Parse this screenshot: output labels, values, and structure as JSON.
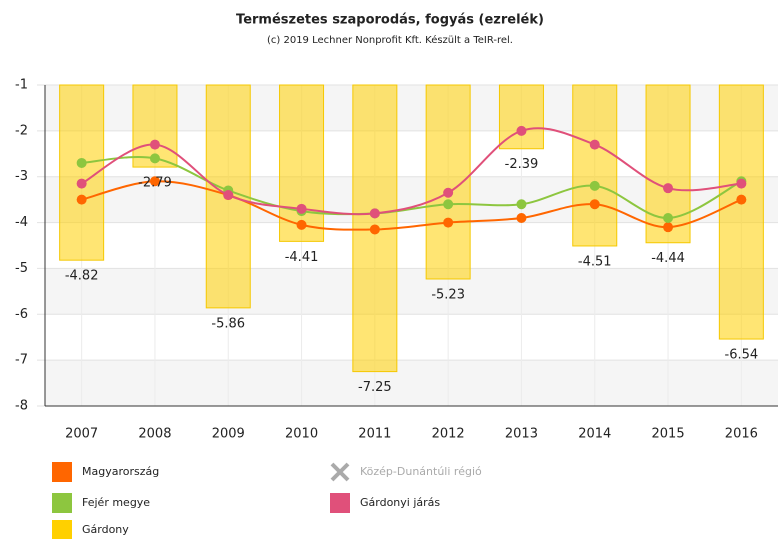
{
  "chart_data": {
    "type": "bar-line",
    "title": "Természetes szaporodás, fogyás (ezrelék)",
    "subtitle": "(c) 2019 Lechner Nonprofit Kft. Készült a TeIR-rel.",
    "categories": [
      "2007",
      "2008",
      "2009",
      "2010",
      "2011",
      "2012",
      "2013",
      "2014",
      "2015",
      "2016"
    ],
    "ylim": [
      -8,
      -1
    ],
    "yticks": [
      -8,
      -7,
      -6,
      -5,
      -4,
      -3,
      -2,
      -1
    ],
    "grid": true,
    "bars": {
      "name": "Gárdony",
      "color": "#ffd000",
      "values": [
        -4.82,
        -2.79,
        -5.86,
        -4.41,
        -7.25,
        -5.23,
        -2.39,
        -4.51,
        -4.44,
        -6.54
      ]
    },
    "series": [
      {
        "name": "Magyarország",
        "color": "#ff6600",
        "values": [
          -3.5,
          -3.1,
          -3.4,
          -4.05,
          -4.15,
          -4.0,
          -3.9,
          -3.6,
          -4.1,
          -3.5
        ]
      },
      {
        "name": "Közép-Dunántúli régió",
        "color": "#bbbbbb",
        "hidden": true,
        "values": [
          null,
          null,
          null,
          null,
          null,
          null,
          null,
          null,
          null,
          null
        ]
      },
      {
        "name": "Fejér megye",
        "color": "#8dc63f",
        "values": [
          -2.7,
          -2.6,
          -3.3,
          -3.75,
          -3.8,
          -3.6,
          -3.6,
          -3.2,
          -3.9,
          -3.1
        ]
      },
      {
        "name": "Gárdonyi járás",
        "color": "#e0507a",
        "values": [
          -3.15,
          -2.3,
          -3.4,
          -3.7,
          -3.8,
          -3.35,
          -2.0,
          -2.3,
          -3.25,
          -3.15
        ]
      }
    ]
  }
}
